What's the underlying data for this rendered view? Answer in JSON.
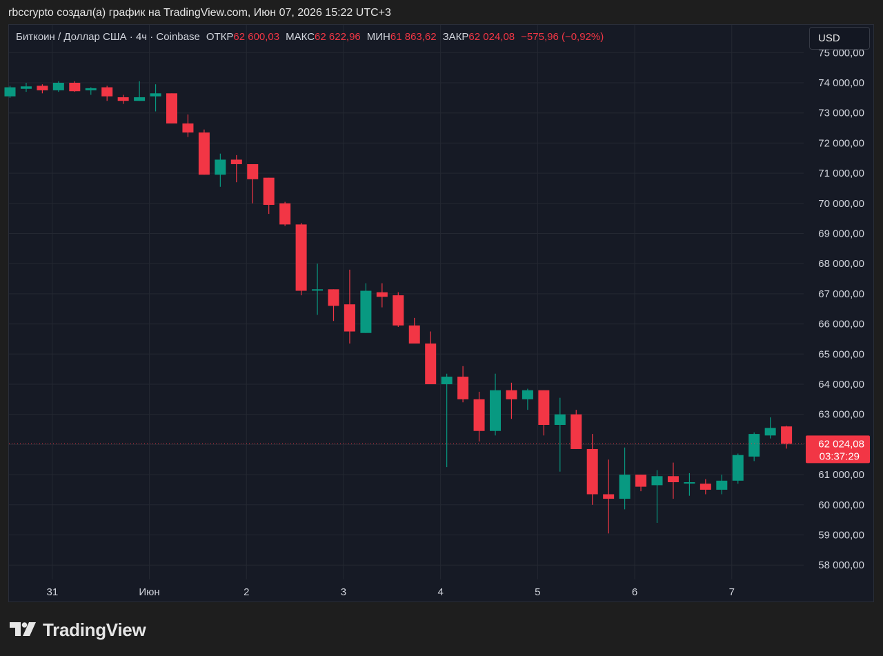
{
  "caption": "rbccrypto создал(а) график на TradingView.com, Июн 07, 2026 15:22 UTC+3",
  "legend": {
    "symbol": "Биткоин / Доллар США · 4ч · Coinbase",
    "open_label": "ОТКР",
    "open_value": "62 600,03",
    "high_label": "МАКС",
    "high_value": "62 622,96",
    "low_label": "МИН",
    "low_value": "61 863,62",
    "close_label": "ЗАКР",
    "close_value": "62 024,08",
    "change": "−575,96 (−0,92%)"
  },
  "currency_button": "USD",
  "last_price": {
    "value": 62024.08,
    "price_label": "62 024,08",
    "countdown": "03:37:29"
  },
  "brand": "TradingView",
  "colors": {
    "up": "#089981",
    "down": "#f23645",
    "background": "#161a25",
    "grid": "#242832",
    "text": "#d1d4dc"
  },
  "icons": [
    "tradingview-logo-icon"
  ],
  "chart_data": {
    "type": "candlestick",
    "interval": "4h",
    "ylim": [
      57500,
      75400
    ],
    "y_ticks": [
      58000,
      59000,
      60000,
      61000,
      62000,
      63000,
      64000,
      65000,
      66000,
      67000,
      68000,
      69000,
      70000,
      71000,
      72000,
      73000,
      74000,
      75000
    ],
    "y_tick_labels": [
      "58 000,00",
      "59 000,00",
      "60 000,00",
      "61 000,00",
      "62 000,00",
      "63 000,00",
      "64 000,00",
      "65 000,00",
      "66 000,00",
      "67 000,00",
      "68 000,00",
      "69 000,00",
      "70 000,00",
      "71 000,00",
      "72 000,00",
      "73 000,00",
      "74 000,00",
      "75 000,00"
    ],
    "x_labels": [
      {
        "label": "31",
        "bar": 2.5
      },
      {
        "label": "Июн",
        "bar": 8.5
      },
      {
        "label": "2",
        "bar": 14.5
      },
      {
        "label": "3",
        "bar": 20.5
      },
      {
        "label": "4",
        "bar": 26.5
      },
      {
        "label": "5",
        "bar": 32.5
      },
      {
        "label": "6",
        "bar": 38.5
      },
      {
        "label": "7",
        "bar": 44.5
      }
    ],
    "candles": [
      {
        "o": 73550,
        "h": 73900,
        "l": 73500,
        "c": 73850
      },
      {
        "o": 73800,
        "h": 74000,
        "l": 73700,
        "c": 73880
      },
      {
        "o": 73900,
        "h": 73950,
        "l": 73650,
        "c": 73750
      },
      {
        "o": 73750,
        "h": 74050,
        "l": 73700,
        "c": 74000
      },
      {
        "o": 74000,
        "h": 74050,
        "l": 73700,
        "c": 73720
      },
      {
        "o": 73750,
        "h": 73850,
        "l": 73600,
        "c": 73820
      },
      {
        "o": 73850,
        "h": 73900,
        "l": 73400,
        "c": 73550
      },
      {
        "o": 73520,
        "h": 73600,
        "l": 73300,
        "c": 73400
      },
      {
        "o": 73400,
        "h": 74050,
        "l": 73400,
        "c": 73520
      },
      {
        "o": 73550,
        "h": 73950,
        "l": 73050,
        "c": 73650
      },
      {
        "o": 73650,
        "h": 73650,
        "l": 72650,
        "c": 72650
      },
      {
        "o": 72650,
        "h": 72950,
        "l": 72200,
        "c": 72350
      },
      {
        "o": 72350,
        "h": 72450,
        "l": 70950,
        "c": 70950
      },
      {
        "o": 70950,
        "h": 71650,
        "l": 70550,
        "c": 71450
      },
      {
        "o": 71450,
        "h": 71600,
        "l": 70700,
        "c": 71300
      },
      {
        "o": 71300,
        "h": 71300,
        "l": 70000,
        "c": 70800
      },
      {
        "o": 70850,
        "h": 70850,
        "l": 69650,
        "c": 69950
      },
      {
        "o": 70000,
        "h": 70050,
        "l": 69250,
        "c": 69300
      },
      {
        "o": 69300,
        "h": 69350,
        "l": 66950,
        "c": 67100
      },
      {
        "o": 67150,
        "h": 68000,
        "l": 66300,
        "c": 67150
      },
      {
        "o": 67150,
        "h": 67150,
        "l": 66100,
        "c": 66600
      },
      {
        "o": 66650,
        "h": 67800,
        "l": 65350,
        "c": 65750
      },
      {
        "o": 65700,
        "h": 67350,
        "l": 65700,
        "c": 67100
      },
      {
        "o": 67050,
        "h": 67350,
        "l": 66550,
        "c": 66900
      },
      {
        "o": 66950,
        "h": 67050,
        "l": 65900,
        "c": 65950
      },
      {
        "o": 65950,
        "h": 66200,
        "l": 65350,
        "c": 65350
      },
      {
        "o": 65350,
        "h": 65750,
        "l": 64000,
        "c": 64000
      },
      {
        "o": 64000,
        "h": 64350,
        "l": 61250,
        "c": 64250
      },
      {
        "o": 64250,
        "h": 64600,
        "l": 63400,
        "c": 63500
      },
      {
        "o": 63500,
        "h": 63750,
        "l": 62100,
        "c": 62450
      },
      {
        "o": 62450,
        "h": 64350,
        "l": 62300,
        "c": 63800
      },
      {
        "o": 63800,
        "h": 64050,
        "l": 62850,
        "c": 63500
      },
      {
        "o": 63500,
        "h": 63850,
        "l": 63150,
        "c": 63800
      },
      {
        "o": 63800,
        "h": 63800,
        "l": 62300,
        "c": 62650
      },
      {
        "o": 62650,
        "h": 63550,
        "l": 61100,
        "c": 63000
      },
      {
        "o": 63000,
        "h": 63150,
        "l": 61850,
        "c": 61850
      },
      {
        "o": 61850,
        "h": 62350,
        "l": 60000,
        "c": 60350
      },
      {
        "o": 60350,
        "h": 61500,
        "l": 59050,
        "c": 60200
      },
      {
        "o": 60200,
        "h": 61900,
        "l": 59850,
        "c": 61000
      },
      {
        "o": 61000,
        "h": 61000,
        "l": 60450,
        "c": 60600
      },
      {
        "o": 60650,
        "h": 61150,
        "l": 59400,
        "c": 60950
      },
      {
        "o": 60950,
        "h": 61400,
        "l": 60200,
        "c": 60750
      },
      {
        "o": 60750,
        "h": 61050,
        "l": 60300,
        "c": 60750
      },
      {
        "o": 60700,
        "h": 60850,
        "l": 60350,
        "c": 60500
      },
      {
        "o": 60500,
        "h": 61000,
        "l": 60350,
        "c": 60800
      },
      {
        "o": 60800,
        "h": 61700,
        "l": 60700,
        "c": 61650
      },
      {
        "o": 61600,
        "h": 62400,
        "l": 61450,
        "c": 62350
      },
      {
        "o": 62300,
        "h": 62900,
        "l": 62200,
        "c": 62550
      },
      {
        "o": 62600.03,
        "h": 62622.96,
        "l": 61863.62,
        "c": 62024.08
      }
    ]
  }
}
